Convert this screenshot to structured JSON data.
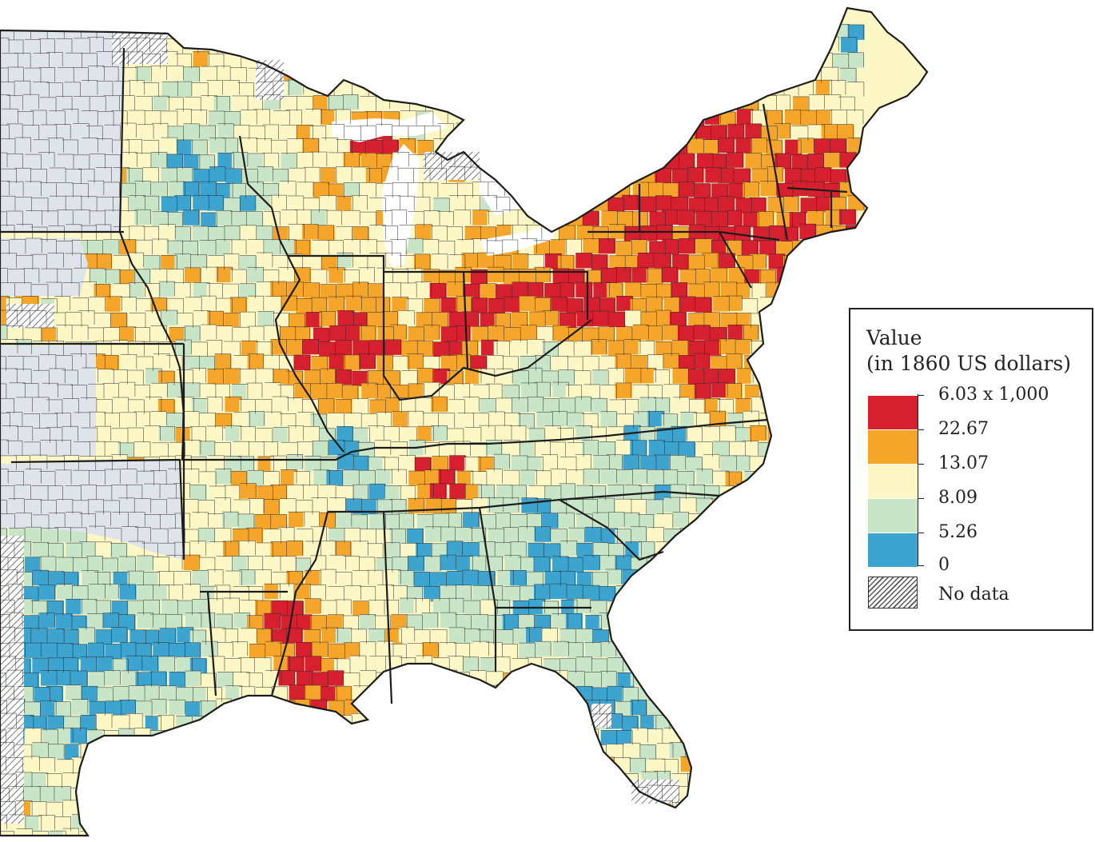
{
  "map": {
    "colors": {
      "ocean": "#ffffff",
      "territory": "#dfe3ea",
      "c0": "#3da3cf",
      "c1": "#c9e5c7",
      "c2": "#fdf6c5",
      "c3": "#f6a52b",
      "c4": "#d7202f",
      "outline": "#1c1c1c"
    }
  },
  "legend": {
    "title_line1": "Value",
    "title_line2": "(in 1860 US dollars)",
    "ticks": [
      "6.03 x 1,000",
      "22.67",
      "13.07",
      "8.09",
      "5.26",
      "0"
    ],
    "no_data": "No data",
    "classes": [
      {
        "range": "22.67 - 6.03 x 1,000",
        "color": "#d7202f"
      },
      {
        "range": "13.07 - 22.67",
        "color": "#f6a52b"
      },
      {
        "range": "8.09 - 13.07",
        "color": "#fdf6c5"
      },
      {
        "range": "5.26 - 8.09",
        "color": "#c9e5c7"
      },
      {
        "range": "0 - 5.26",
        "color": "#3da3cf"
      }
    ]
  }
}
